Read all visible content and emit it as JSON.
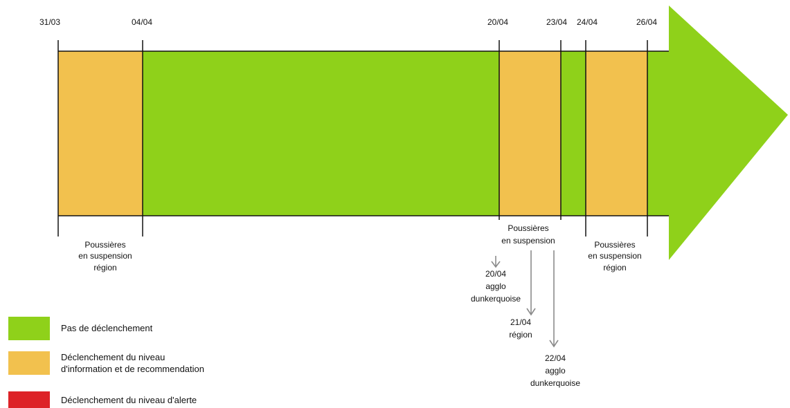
{
  "colors": {
    "green": "#8fd11a",
    "orange": "#f2c14e",
    "red": "#dd2328",
    "line": "#111111",
    "arrow": "#8a8a8a"
  },
  "timeline": {
    "dates": [
      "31/03",
      "04/04",
      "20/04",
      "23/04",
      "24/04",
      "26/04"
    ],
    "periods": [
      {
        "start": "31/03",
        "end": "04/04",
        "level": "orange",
        "note": [
          "Poussières",
          "en suspension",
          "région"
        ]
      },
      {
        "start": "04/04",
        "end": "20/04",
        "level": "green",
        "note": []
      },
      {
        "start": "20/04",
        "end": "23/04",
        "level": "orange",
        "note": [
          "Poussières",
          "en suspension"
        ]
      },
      {
        "start": "23/04",
        "end": "24/04",
        "level": "green",
        "note": []
      },
      {
        "start": "24/04",
        "end": "26/04",
        "level": "orange",
        "note": [
          "Poussières",
          "en suspension",
          "région"
        ]
      },
      {
        "start": "26/04",
        "end": "",
        "level": "green",
        "note": []
      }
    ],
    "details": [
      {
        "lines": [
          "20/04",
          "agglo",
          "dunkerquoise"
        ]
      },
      {
        "lines": [
          "21/04",
          "région"
        ]
      },
      {
        "lines": [
          "22/04",
          "agglo",
          "dunkerquoise"
        ]
      }
    ]
  },
  "legend": [
    {
      "level": "green",
      "label": "Pas de déclenchement"
    },
    {
      "level": "orange",
      "label": "Déclenchement du niveau\nd'information et de recommendation"
    },
    {
      "level": "red",
      "label": "Déclenchement du niveau d'alerte"
    }
  ]
}
